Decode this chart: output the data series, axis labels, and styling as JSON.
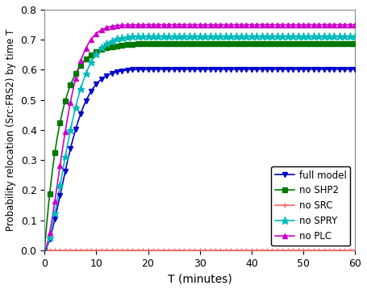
{
  "title": "",
  "xlabel": "T (minutes)",
  "ylabel": "Probability relocation (Src:FRS2) by time T",
  "xlim": [
    0,
    60
  ],
  "ylim": [
    0,
    0.8
  ],
  "yticks": [
    0.0,
    0.1,
    0.2,
    0.3,
    0.4,
    0.5,
    0.6,
    0.7,
    0.8
  ],
  "xticks": [
    0,
    10,
    20,
    30,
    40,
    50,
    60
  ],
  "series": [
    {
      "label": "full model",
      "color": "#0000CC",
      "marker": "v",
      "asymptote": 0.602,
      "rate": 0.1,
      "power": 1.6
    },
    {
      "label": "no SHP2",
      "color": "#007700",
      "marker": "s",
      "asymptote": 0.688,
      "rate": 0.32,
      "power": 1.0
    },
    {
      "label": "no SRC",
      "color": "#FF6666",
      "marker": "+",
      "asymptote": 0.0,
      "rate": 0.0,
      "power": 1.0
    },
    {
      "label": "no SPRY",
      "color": "#00BBBB",
      "marker": "*",
      "asymptote": 0.712,
      "rate": 0.1,
      "power": 1.6
    },
    {
      "label": "no PLC",
      "color": "#CC00CC",
      "marker": "^",
      "asymptote": 0.75,
      "rate": 0.13,
      "power": 1.6
    }
  ]
}
